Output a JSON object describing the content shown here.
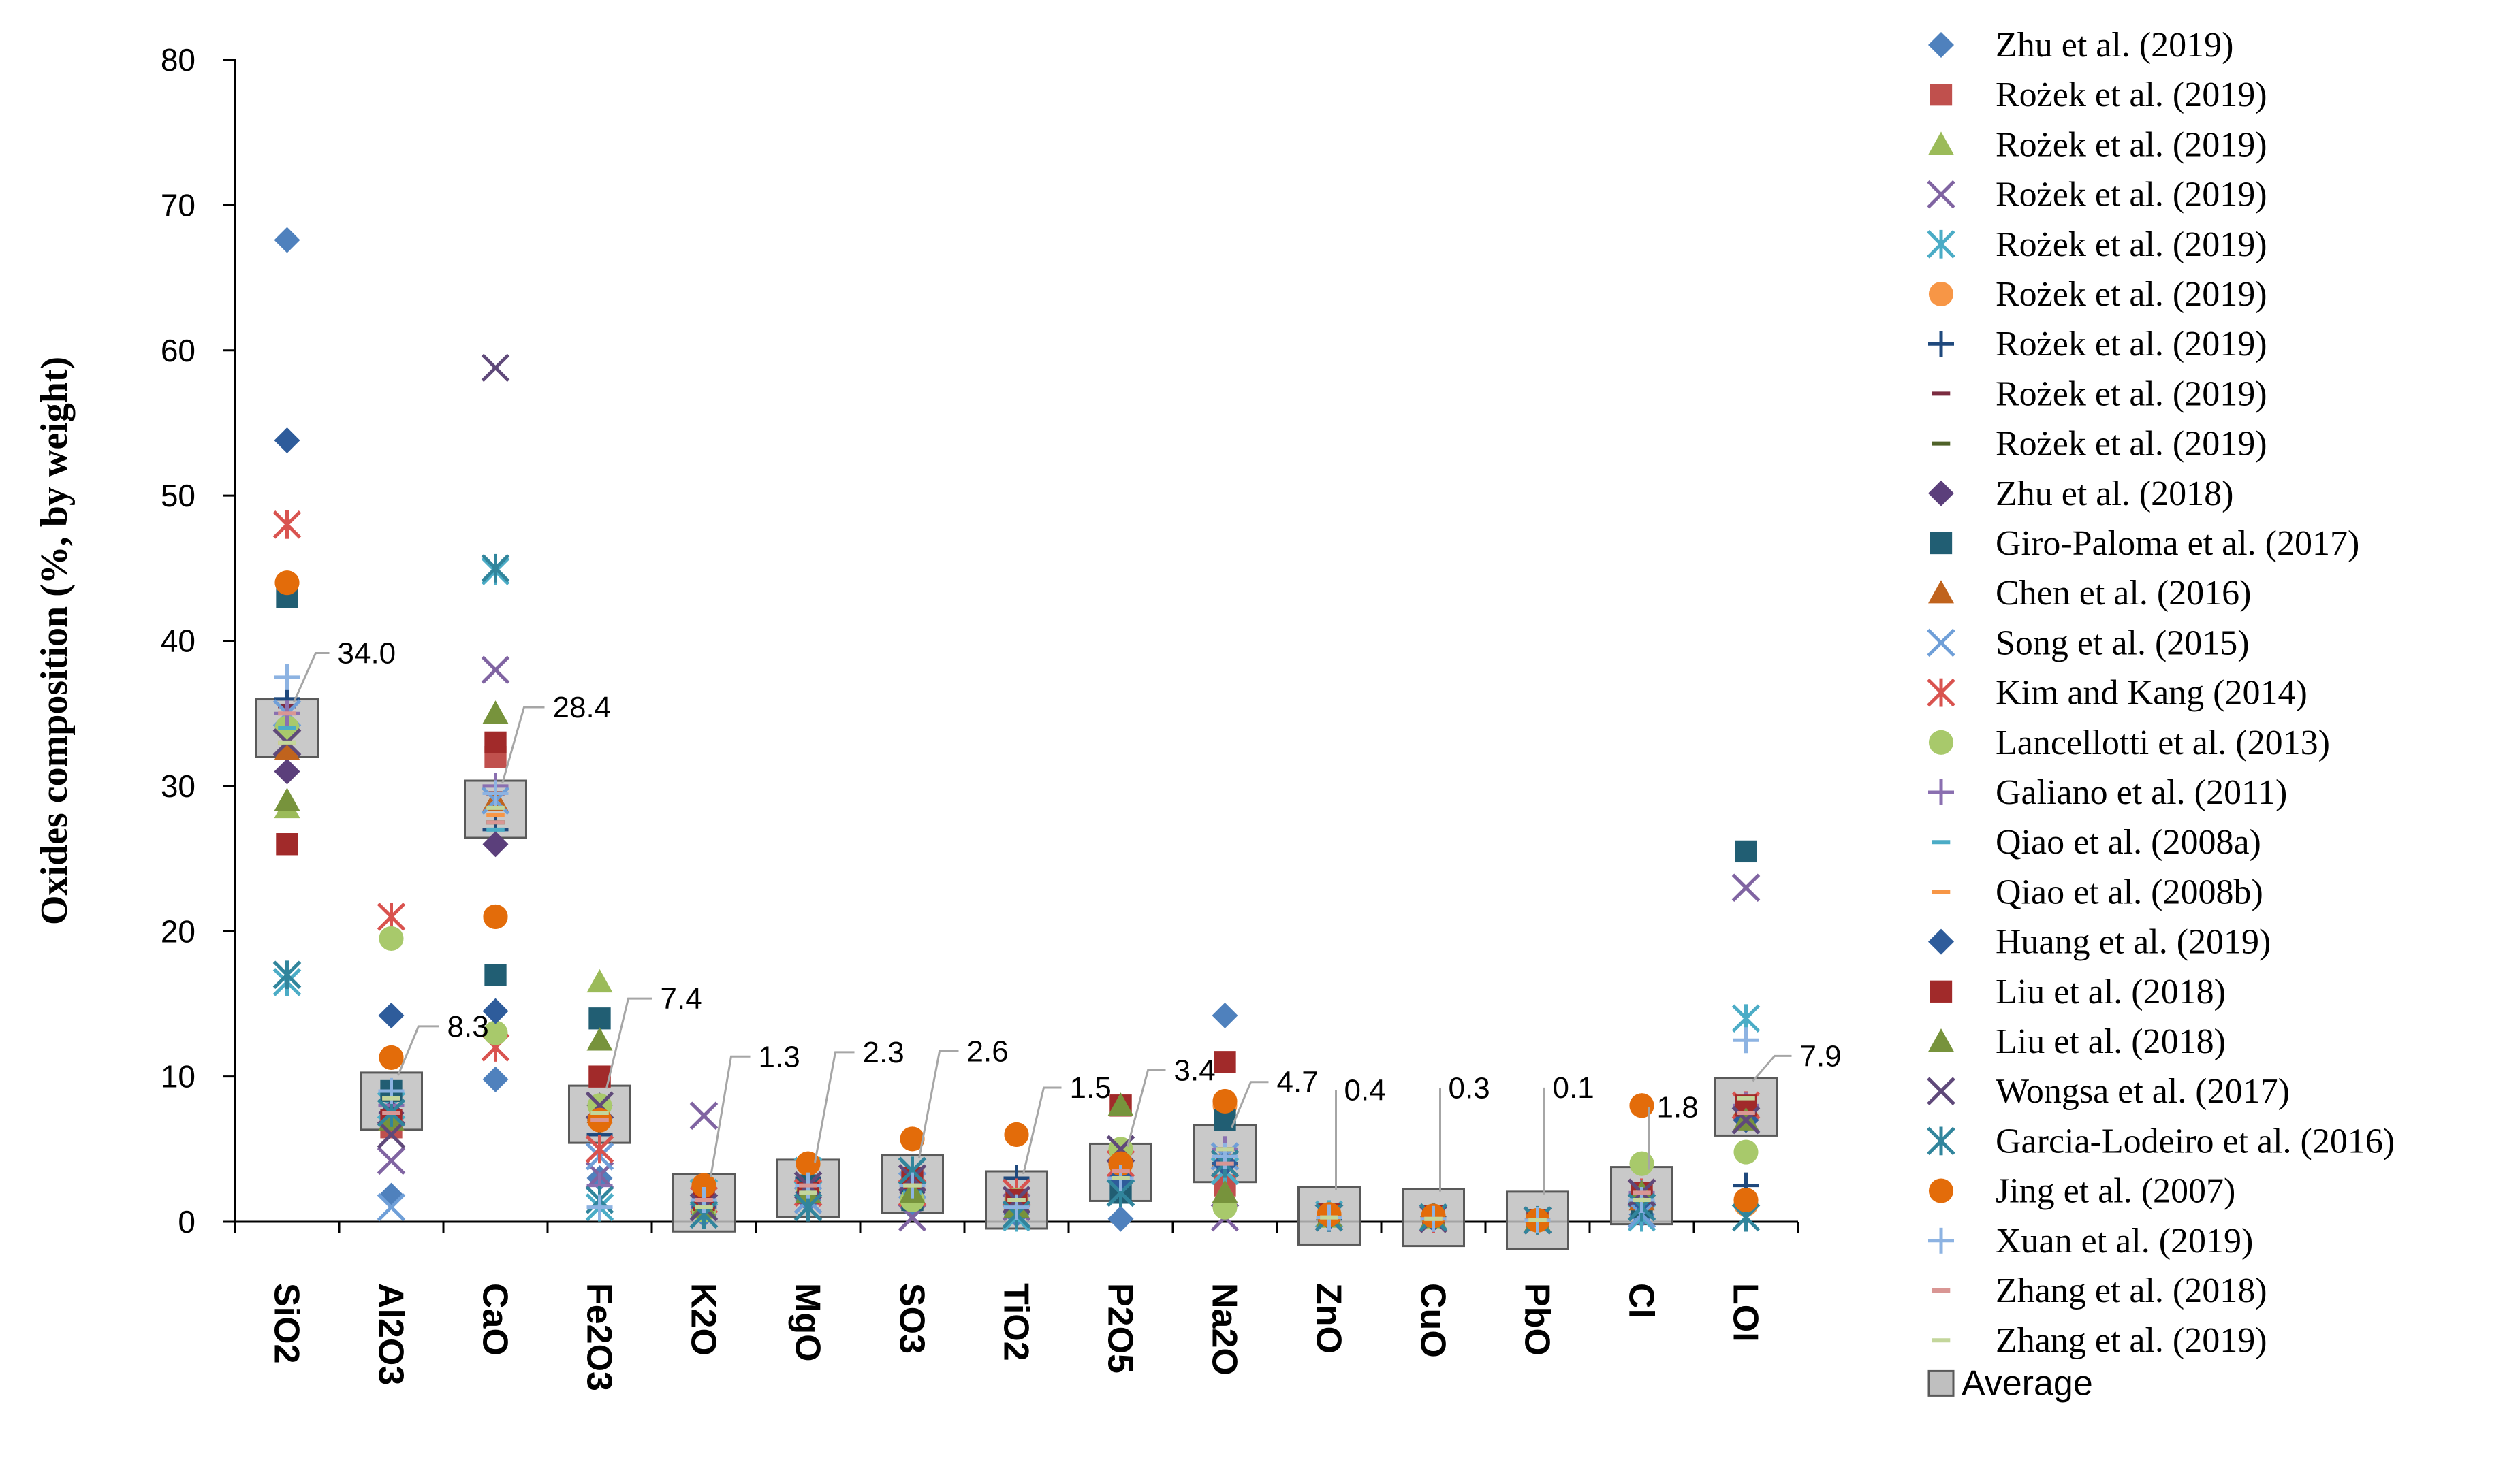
{
  "chart_data": {
    "type": "scatter",
    "ylabel": "Oxides composition (%, by weight)",
    "ylim": [
      0,
      80
    ],
    "yticks": [
      0,
      10,
      20,
      30,
      40,
      50,
      60,
      70,
      80
    ],
    "categories": [
      "SiO2",
      "Al2O3",
      "CaO",
      "Fe2O3",
      "K2O",
      "MgO",
      "SO3",
      "TiO2",
      "P2O5",
      "Na2O",
      "ZnO",
      "CuO",
      "PbO",
      "Cl",
      "LOI"
    ],
    "average": {
      "name": "Average",
      "values": [
        34.0,
        8.3,
        28.4,
        7.4,
        1.3,
        2.3,
        2.6,
        1.5,
        3.4,
        4.7,
        0.4,
        0.3,
        0.1,
        1.8,
        7.9
      ],
      "labels": [
        "34.0",
        "8.3",
        "28.4",
        "7.4",
        "1.3",
        "2.3",
        "2.6",
        "1.5",
        "3.4",
        "4.7",
        "0.4",
        "0.3",
        "0.1",
        "1.8",
        "7.9"
      ]
    },
    "series": [
      {
        "name": "Zhu et al. (2019)",
        "marker": "diamond",
        "color": "#4F81BD",
        "values": [
          67.6,
          1.8,
          9.8,
          3.0,
          0.5,
          1.5,
          1.0,
          0.5,
          0.2,
          14.2,
          null,
          null,
          null,
          0.5,
          null
        ]
      },
      {
        "name": "Rożek et al. (2019)",
        "marker": "square",
        "color": "#C0504D",
        "values": [
          26.0,
          6.5,
          32.0,
          10.0,
          1.3,
          2.5,
          1.5,
          1.5,
          8.0,
          2.5,
          0.5,
          0.4,
          0.1,
          1.5,
          null
        ]
      },
      {
        "name": "Rożek et al. (2019)",
        "marker": "triangle",
        "color": "#9BBB59",
        "values": [
          28.5,
          7.0,
          35.0,
          16.5,
          1.0,
          2.0,
          2.0,
          1.0,
          8.0,
          2.0,
          0.3,
          0.2,
          0.1,
          2.0,
          null
        ]
      },
      {
        "name": "Rożek et al. (2019)",
        "marker": "x",
        "color": "#8064A2",
        "values": [
          33.0,
          4.2,
          38.0,
          3.2,
          7.3,
          1.5,
          0.3,
          1.0,
          5.0,
          0.3,
          0.3,
          0.2,
          0.1,
          1.0,
          23.0
        ]
      },
      {
        "name": "Rożek et al. (2019)",
        "marker": "asterisk",
        "color": "#4BACC6",
        "values": [
          16.5,
          8.0,
          44.8,
          1.0,
          2.0,
          3.5,
          3.5,
          0.3,
          2.0,
          3.5,
          0.5,
          0.3,
          0.1,
          0.3,
          14.0
        ]
      },
      {
        "name": "Rożek et al. (2019)",
        "marker": "circle",
        "color": "#F79646",
        "values": [
          44.0,
          11.3,
          21.0,
          7.0,
          2.5,
          4.0,
          5.7,
          6.0,
          4.0,
          8.0,
          0.5,
          0.4,
          0.1,
          8.0,
          1.2
        ]
      },
      {
        "name": "Rożek et al. (2019)",
        "marker": "plus",
        "color": "#1F497D",
        "values": [
          36.0,
          9.0,
          27.0,
          6.0,
          1.0,
          3.0,
          2.5,
          3.0,
          3.0,
          4.0,
          0.2,
          0.3,
          0.1,
          1.5,
          2.5
        ]
      },
      {
        "name": "Rożek et al. (2019)",
        "marker": "dash",
        "color": "#7B2C40",
        "values": [
          35.5,
          7.5,
          29.5,
          8.0,
          1.0,
          2.5,
          5.7,
          2.0,
          4.0,
          5.0,
          0.4,
          0.3,
          0.1,
          2.0,
          7.0
        ]
      },
      {
        "name": "Rożek et al. (2019)",
        "marker": "dash",
        "color": "#4F6228",
        "values": [
          32.0,
          9.0,
          27.5,
          7.5,
          1.5,
          2.0,
          3.0,
          1.5,
          3.0,
          5.0,
          0.3,
          0.2,
          0.1,
          2.0,
          8.0
        ]
      },
      {
        "name": "Zhu et al. (2018)",
        "marker": "diamond",
        "color": "#5B3F7B",
        "values": [
          31.0,
          7.5,
          26.0,
          8.0,
          1.0,
          2.0,
          2.0,
          1.0,
          3.0,
          4.0,
          0.3,
          0.2,
          0.1,
          2.0,
          7.0
        ]
      },
      {
        "name": "Giro-Paloma et al. (2017)",
        "marker": "square",
        "color": "#215E73",
        "values": [
          43.0,
          9.0,
          17.0,
          14.0,
          1.0,
          2.5,
          1.5,
          1.0,
          2.0,
          7.0,
          0.5,
          0.4,
          0.1,
          1.0,
          25.5
        ]
      },
      {
        "name": "Chen et al. (2016)",
        "marker": "triangle",
        "color": "#C0631D",
        "values": [
          32.5,
          7.0,
          29.0,
          7.5,
          1.5,
          2.0,
          3.0,
          1.5,
          3.5,
          4.5,
          0.4,
          0.3,
          0.1,
          1.5,
          8.0
        ]
      },
      {
        "name": "Song et al. (2015)",
        "marker": "x",
        "color": "#6F9FD8",
        "values": [
          35.0,
          1.0,
          29.0,
          4.5,
          0.5,
          1.5,
          2.5,
          0.5,
          2.0,
          4.5,
          0.3,
          0.2,
          0.1,
          0.5,
          7.0
        ]
      },
      {
        "name": "Kim and Kang (2014)",
        "marker": "asterisk",
        "color": "#D9534F",
        "values": [
          48.0,
          21.0,
          12.0,
          5.0,
          1.5,
          2.0,
          2.0,
          2.0,
          4.0,
          4.0,
          0.3,
          0.2,
          0.1,
          2.0,
          8.0
        ]
      },
      {
        "name": "Lancellotti et al. (2013)",
        "marker": "circle",
        "color": "#A8C96B",
        "values": [
          34.0,
          19.5,
          13.0,
          8.0,
          0.8,
          2.0,
          1.5,
          1.5,
          5.0,
          1.0,
          0.4,
          0.3,
          0.1,
          4.0,
          4.8
        ]
      },
      {
        "name": "Galiano et al. (2011)",
        "marker": "plus",
        "color": "#8A6FB0",
        "values": [
          35.0,
          8.0,
          30.0,
          2.5,
          1.0,
          2.5,
          2.5,
          1.0,
          3.0,
          5.0,
          0.3,
          0.2,
          0.1,
          2.0,
          8.0
        ]
      },
      {
        "name": "Qiao et al. (2008a)",
        "marker": "dash",
        "color": "#4BACC6",
        "values": [
          34.0,
          7.0,
          27.0,
          7.0,
          1.0,
          2.0,
          2.0,
          1.0,
          3.0,
          4.0,
          0.3,
          0.2,
          0.1,
          1.5,
          7.5
        ]
      },
      {
        "name": "Qiao et al. (2008b)",
        "marker": "dash",
        "color": "#F79646",
        "values": [
          33.0,
          8.5,
          28.0,
          7.0,
          1.5,
          2.5,
          3.0,
          1.5,
          3.5,
          5.0,
          0.4,
          0.3,
          0.1,
          2.0,
          8.0
        ]
      },
      {
        "name": "Huang et al. (2019)",
        "marker": "diamond",
        "color": "#2E5C9B",
        "values": [
          53.8,
          14.2,
          14.5,
          7.0,
          1.0,
          2.0,
          2.5,
          1.0,
          3.0,
          4.0,
          0.3,
          0.2,
          0.1,
          1.5,
          7.0
        ]
      },
      {
        "name": "Liu et al. (2018)",
        "marker": "square",
        "color": "#A12A2A",
        "values": [
          26.0,
          7.0,
          33.0,
          10.0,
          1.5,
          2.0,
          3.0,
          1.5,
          8.0,
          11.0,
          0.5,
          0.4,
          0.1,
          2.0,
          8.0
        ]
      },
      {
        "name": "Liu et al. (2018)",
        "marker": "triangle",
        "color": "#77933C",
        "values": [
          29.0,
          7.0,
          35.0,
          12.5,
          1.0,
          2.0,
          2.0,
          1.0,
          8.0,
          2.0,
          0.4,
          0.3,
          0.1,
          2.0,
          7.0
        ]
      },
      {
        "name": "Wongsa et al. (2017)",
        "marker": "x",
        "color": "#5F497A",
        "values": [
          33.0,
          6.0,
          58.8,
          8.0,
          1.0,
          2.5,
          3.0,
          1.5,
          5.0,
          4.0,
          0.3,
          0.2,
          0.1,
          2.0,
          7.0
        ]
      },
      {
        "name": "Garcia-Lodeiro et al. (2016)",
        "marker": "asterisk",
        "color": "#31859C",
        "values": [
          17.0,
          7.5,
          45.0,
          1.5,
          0.5,
          1.0,
          3.5,
          0.5,
          2.0,
          4.0,
          0.3,
          0.3,
          0.1,
          1.0,
          0.3
        ]
      },
      {
        "name": "Jing et al. (2007)",
        "marker": "circle",
        "color": "#E36C0A",
        "values": [
          44.0,
          11.3,
          21.0,
          7.0,
          2.5,
          4.0,
          5.7,
          6.0,
          4.0,
          8.3,
          0.5,
          0.4,
          0.1,
          8.0,
          1.5
        ]
      },
      {
        "name": "Xuan et al. (2019)",
        "marker": "plus",
        "color": "#8DB3E2",
        "values": [
          37.5,
          9.0,
          29.5,
          1.0,
          1.5,
          2.5,
          2.5,
          1.0,
          3.0,
          4.5,
          0.3,
          0.2,
          0.1,
          1.5,
          12.5
        ]
      },
      {
        "name": "Zhang et al. (2018)",
        "marker": "dash",
        "color": "#D99694",
        "values": [
          35.0,
          7.5,
          27.5,
          7.0,
          1.5,
          2.5,
          2.5,
          1.5,
          3.5,
          4.0,
          0.3,
          0.2,
          0.1,
          2.0,
          7.5
        ]
      },
      {
        "name": "Zhang et al. (2019)",
        "marker": "dash",
        "color": "#C3D69B",
        "values": [
          33.0,
          8.5,
          28.5,
          7.5,
          1.0,
          2.0,
          2.5,
          1.5,
          3.0,
          5.0,
          0.3,
          0.2,
          0.1,
          1.5,
          8.5
        ]
      }
    ],
    "legend_position": "right",
    "grid": false
  }
}
